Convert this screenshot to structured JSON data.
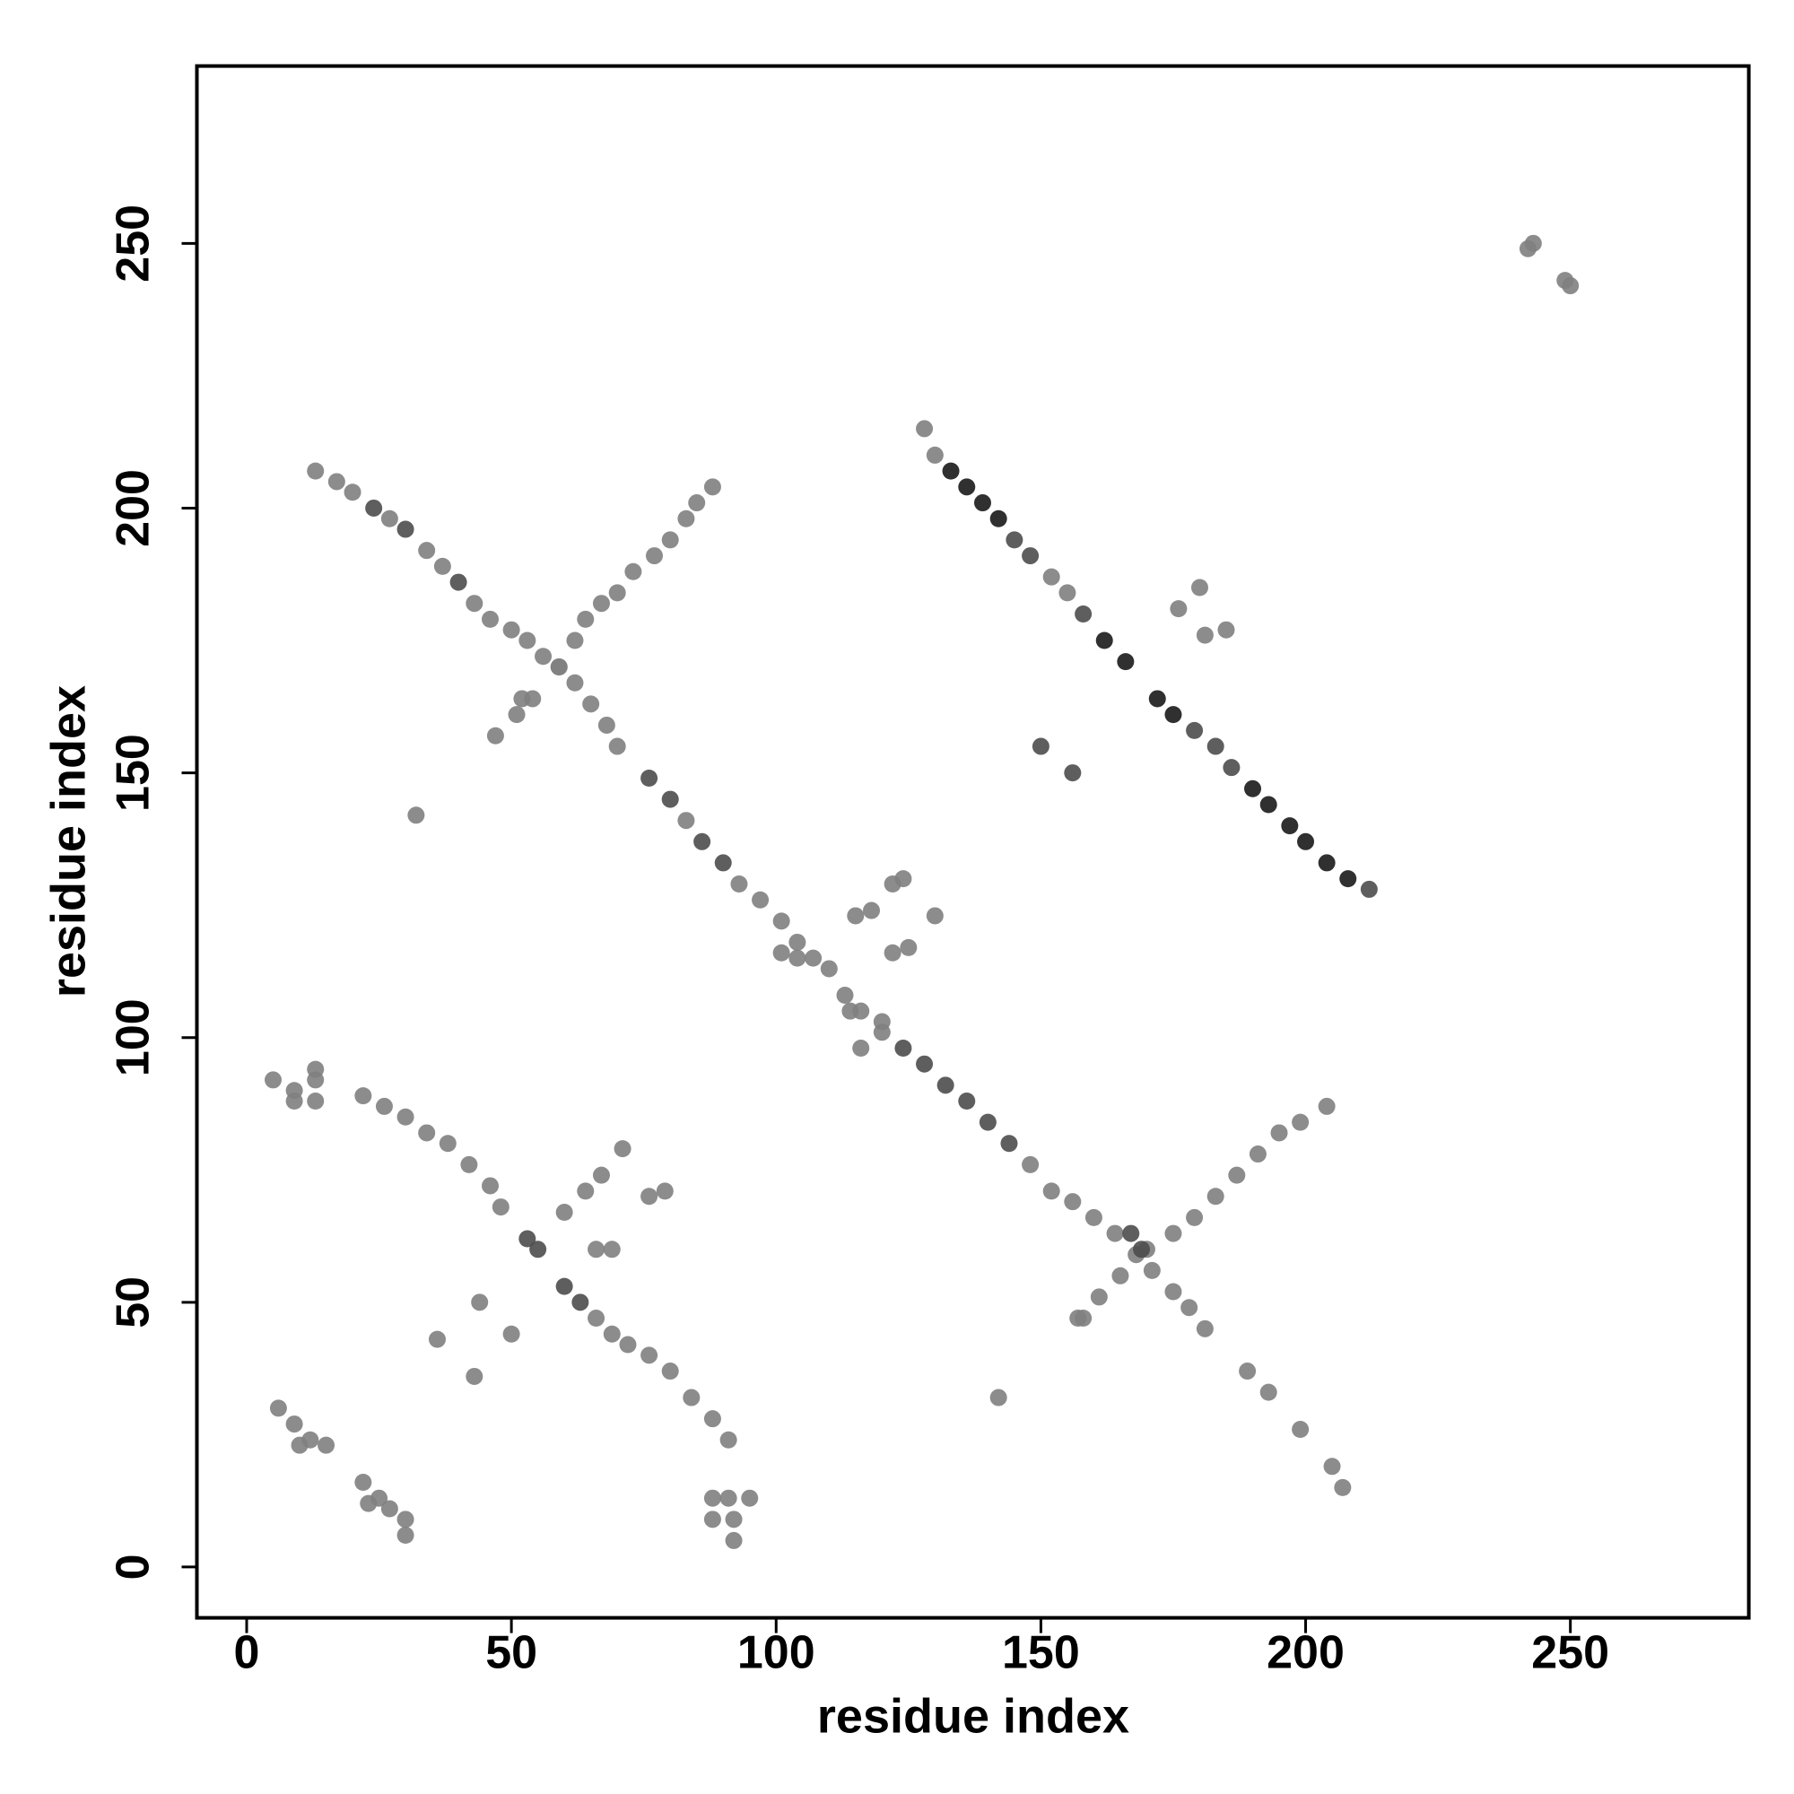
{
  "chart_data": {
    "type": "scatter",
    "x_label": "residue index",
    "y_label": "residue index",
    "xlim": [
      -9.4,
      283.7
    ],
    "ylim": [
      -9.6,
      283.5
    ],
    "xticks": [
      0,
      50,
      100,
      150,
      200,
      250
    ],
    "yticks": [
      0,
      50,
      100,
      150,
      200,
      250
    ],
    "series": [
      {
        "color": "#808080",
        "x": [
          13,
          17,
          20,
          27,
          34,
          37,
          43,
          46,
          50,
          53,
          56,
          59,
          62,
          65,
          68,
          70,
          83,
          93,
          97,
          101,
          104,
          107,
          113,
          116,
          120,
          148,
          152,
          156,
          160,
          164,
          168,
          171,
          175,
          178,
          181,
          189,
          193,
          199,
          205,
          207,
          51,
          54,
          59,
          62,
          64,
          67,
          70,
          73,
          77,
          80,
          83,
          85,
          88,
          157,
          161,
          165,
          170,
          175,
          179,
          183,
          187,
          191,
          195,
          199,
          204,
          22,
          26,
          30,
          34,
          38,
          42,
          46,
          48,
          66,
          69,
          72,
          76,
          80,
          84,
          88,
          91,
          60,
          64,
          67,
          71,
          76,
          79,
          66,
          69,
          5,
          9,
          13,
          13,
          9,
          13,
          6,
          9,
          12,
          15,
          10,
          22,
          25,
          27,
          30,
          30,
          23,
          88,
          91,
          95,
          88,
          92,
          92,
          32,
          47,
          52,
          44,
          36,
          50,
          43,
          142,
          158,
          242,
          249,
          243,
          250,
          115,
          118,
          122,
          124,
          130,
          125,
          122,
          101,
          104,
          110,
          120,
          114,
          116,
          176,
          180,
          185,
          181,
          128,
          130,
          152,
          155
        ],
        "values": [
          207,
          205,
          203,
          198,
          192,
          189,
          182,
          179,
          177,
          175,
          172,
          170,
          167,
          163,
          159,
          155,
          141,
          129,
          126,
          122,
          118,
          115,
          108,
          105,
          101,
          76,
          71,
          69,
          66,
          63,
          59,
          56,
          52,
          49,
          45,
          37,
          33,
          26,
          19,
          15,
          161,
          164,
          170,
          175,
          179,
          182,
          184,
          188,
          191,
          194,
          198,
          201,
          204,
          47,
          51,
          55,
          60,
          63,
          66,
          70,
          74,
          78,
          82,
          84,
          87,
          89,
          87,
          85,
          82,
          80,
          76,
          72,
          68,
          47,
          44,
          42,
          40,
          37,
          32,
          28,
          24,
          67,
          71,
          74,
          79,
          70,
          71,
          60,
          60,
          92,
          90,
          92,
          94,
          88,
          88,
          30,
          27,
          24,
          23,
          23,
          16,
          13,
          11,
          9,
          6,
          12,
          13,
          13,
          13,
          9,
          9,
          5,
          142,
          157,
          164,
          50,
          43,
          44,
          36,
          32,
          47,
          249,
          243,
          250,
          242,
          123,
          124,
          129,
          130,
          123,
          117,
          116,
          116,
          115,
          113,
          103,
          105,
          98,
          181,
          185,
          177,
          176,
          215,
          210,
          187,
          184
        ]
      },
      {
        "color": "#4d4d4d",
        "x": [
          24,
          30,
          40,
          76,
          80,
          86,
          90,
          124,
          128,
          132,
          136,
          140,
          144,
          53,
          55,
          60,
          63,
          167,
          169,
          145,
          148,
          158,
          179,
          183,
          186,
          212,
          150,
          156
        ],
        "values": [
          200,
          196,
          186,
          149,
          145,
          137,
          133,
          98,
          95,
          91,
          88,
          84,
          80,
          62,
          60,
          53,
          50,
          63,
          60,
          194,
          191,
          180,
          158,
          155,
          151,
          128,
          155,
          150
        ]
      },
      {
        "color": "#1a1a1a",
        "x": [
          133,
          136,
          139,
          142,
          162,
          166,
          172,
          175,
          190,
          193,
          197,
          200,
          204,
          208
        ],
        "values": [
          207,
          204,
          201,
          198,
          175,
          171,
          164,
          161,
          147,
          144,
          140,
          137,
          133,
          130
        ]
      }
    ]
  }
}
